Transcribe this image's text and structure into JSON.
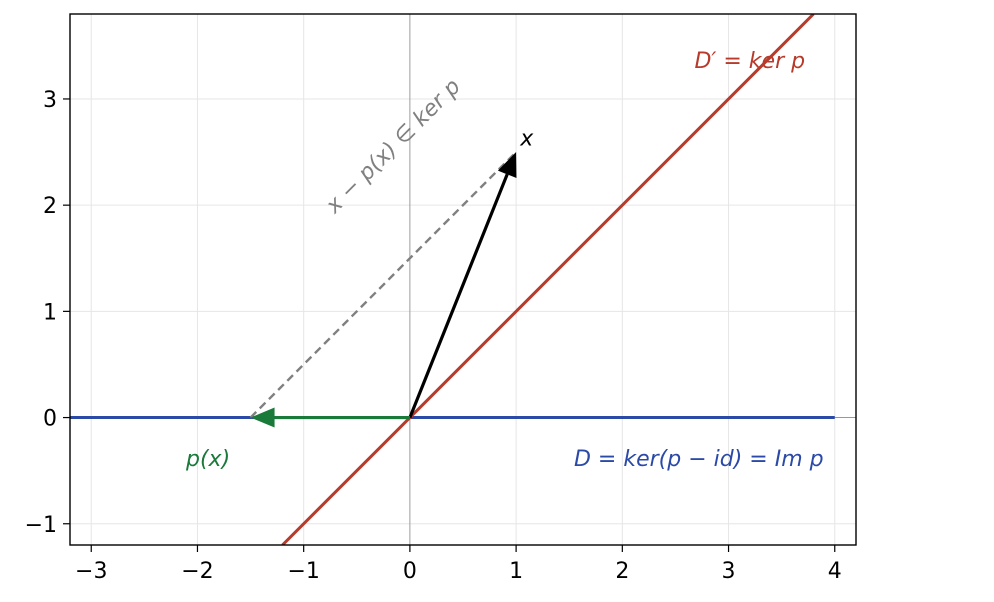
{
  "chart_data": {
    "type": "line",
    "title": "",
    "xlabel": "",
    "ylabel": "",
    "xlim": [
      -3.2,
      4.2
    ],
    "ylim": [
      -1.2,
      3.8
    ],
    "xticks": [
      -3,
      -2,
      -1,
      0,
      1,
      2,
      3,
      4
    ],
    "yticks": [
      -1,
      0,
      1,
      2,
      3
    ],
    "xtick_labels": [
      "−3",
      "−2",
      "−1",
      "0",
      "1",
      "2",
      "3",
      "4"
    ],
    "ytick_labels": [
      "−1",
      "0",
      "1",
      "2",
      "3"
    ],
    "grid": true,
    "lines": [
      {
        "name": "D = ker(p − id) = Im p",
        "color": "#2b4aa8",
        "x": [
          -3.2,
          4.0
        ],
        "y": [
          0,
          0
        ]
      },
      {
        "name": "D′ = ker p",
        "color": "#b83a2b",
        "x": [
          -1.2,
          3.8
        ],
        "y": [
          -1.2,
          3.8
        ]
      }
    ],
    "vectors": [
      {
        "name": "x",
        "color": "#000000",
        "from": [
          0,
          0
        ],
        "to": [
          1.0,
          2.5
        ]
      },
      {
        "name": "p(x)",
        "color": "#1a7a3a",
        "from": [
          0,
          0
        ],
        "to": [
          -1.5,
          0
        ]
      }
    ],
    "dashed": {
      "name": "x − p(x) ∈ ker p",
      "color": "#808080",
      "from": [
        -1.5,
        0
      ],
      "to": [
        1.0,
        2.5
      ]
    },
    "annotations": [
      {
        "text": "D′ = ker p",
        "color": "#b83a2b",
        "at": [
          3.2,
          3.35
        ]
      },
      {
        "text": "D = ker(p − id) = Im p",
        "color": "#2b4aa8",
        "at": [
          2.72,
          -0.4
        ]
      },
      {
        "text": "p(x)",
        "color": "#1a7a3a",
        "at": [
          -1.9,
          -0.4
        ]
      },
      {
        "text": "x",
        "color": "#000000",
        "at": [
          1.1,
          2.62
        ]
      },
      {
        "text": "x − p(x) ∈ ker p",
        "color": "#808080",
        "at": [
          -0.15,
          2.55
        ],
        "rotation_deg": -45
      }
    ]
  }
}
